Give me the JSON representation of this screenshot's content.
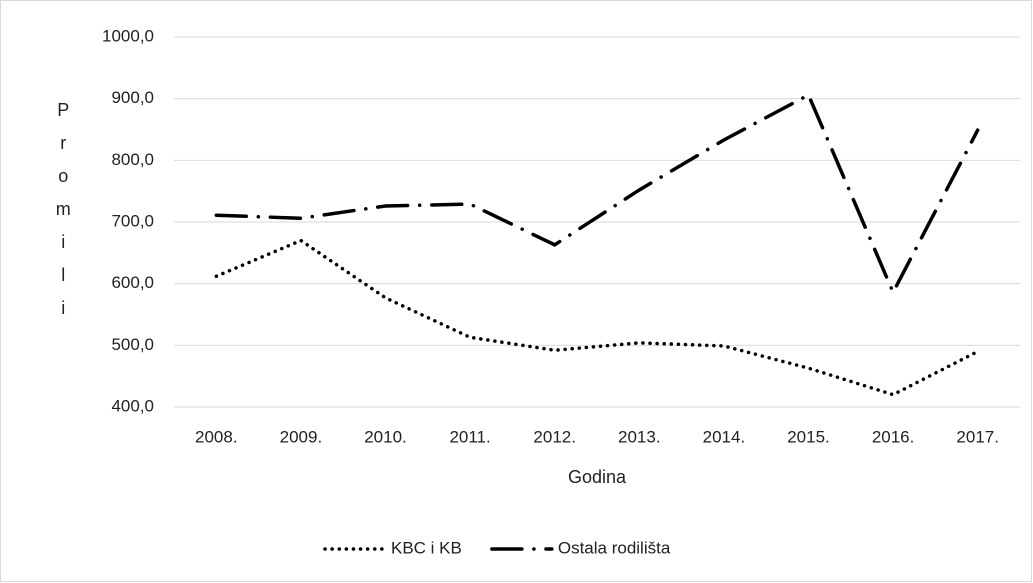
{
  "chart_data": {
    "type": "line",
    "x_label": "Godina",
    "y_label": "Promili",
    "categories": [
      "2008.",
      "2009.",
      "2010.",
      "2011.",
      "2012.",
      "2013.",
      "2014.",
      "2015.",
      "2016.",
      "2017."
    ],
    "series": [
      {
        "name": "KBC i KB",
        "color": "#000000",
        "style": "dotted",
        "values": [
          612,
          670,
          577,
          513,
          492,
          504,
          499,
          463,
          420,
          490
        ]
      },
      {
        "name": "Ostala rodilišta",
        "color": "#000000",
        "style": "dashdot",
        "values": [
          711,
          706,
          726,
          729,
          663,
          752,
          833,
          906,
          586,
          849
        ]
      }
    ],
    "ylim": [
      400,
      1000
    ],
    "yticks": [
      {
        "value": 400,
        "label": "400,0"
      },
      {
        "value": 500,
        "label": "500,0"
      },
      {
        "value": 600,
        "label": "600,0"
      },
      {
        "value": 700,
        "label": "700,0"
      },
      {
        "value": 800,
        "label": "800,0"
      },
      {
        "value": 900,
        "label": "900,0"
      },
      {
        "value": 1000,
        "label": "1000,0"
      }
    ],
    "grid": true,
    "legend": "bottom"
  }
}
